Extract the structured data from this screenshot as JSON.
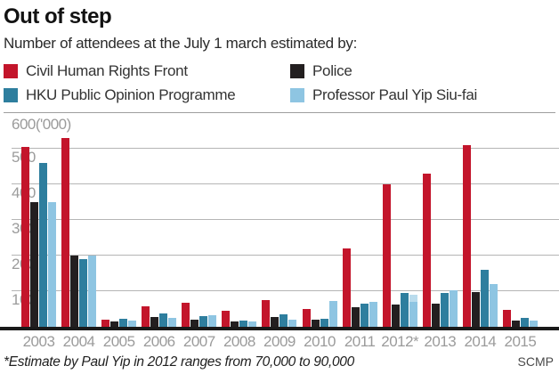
{
  "header": {
    "title": "Out of step",
    "subtitle": "Number of attendees at the July 1 march estimated by:"
  },
  "legend": [
    {
      "label": "Civil Human Rights Front",
      "color": "#c3152b"
    },
    {
      "label": "Police",
      "color": "#231f20"
    },
    {
      "label": "HKU Public Opinion Programme",
      "color": "#2e7e9e"
    },
    {
      "label": "Professor Paul Yip Siu-fai",
      "color": "#8ec5e2"
    }
  ],
  "chart_data": {
    "type": "bar",
    "title": "Out of step",
    "unit": "'000",
    "y_axis_top_label": "600('000)",
    "ylim": [
      0,
      600
    ],
    "ytick_lines": [
      100,
      200,
      300,
      400,
      500
    ],
    "grid": true,
    "categories": [
      "2003",
      "2004",
      "2005",
      "2006",
      "2007",
      "2008",
      "2009",
      "2010",
      "2011",
      "2012*",
      "2013",
      "2014",
      "2015"
    ],
    "series": [
      {
        "name": "Civil Human Rights Front",
        "color": "#c3152b",
        "values": [
          505,
          530,
          21,
          58,
          68,
          47,
          75,
          51,
          220,
          400,
          430,
          510,
          48
        ]
      },
      {
        "name": "Police",
        "color": "#231f20",
        "values": [
          350,
          200,
          15,
          28,
          20,
          15,
          28,
          21,
          55,
          63,
          66,
          99,
          18
        ]
      },
      {
        "name": "HKU Public Opinion Programme",
        "color": "#2e7e9e",
        "values": [
          460,
          190,
          23,
          38,
          32,
          19,
          35,
          24,
          66,
          95,
          97,
          160,
          25
        ]
      },
      {
        "name": "Professor Paul Yip Siu-fai",
        "color": "#8ec5e2",
        "values": [
          350,
          200,
          19,
          26,
          34,
          17,
          21,
          73,
          71,
          90,
          103,
          120,
          19
        ]
      }
    ],
    "special_range": {
      "series": "Professor Paul Yip Siu-fai",
      "category": "2012*",
      "low": 70,
      "high": 90,
      "light_color": "#badced",
      "meaning": "Estimate shown as range 70,000-90,000"
    }
  },
  "footer": {
    "note": "*Estimate by Paul Yip in 2012 ranges from 70,000 to 90,000",
    "source": "SCMP"
  }
}
